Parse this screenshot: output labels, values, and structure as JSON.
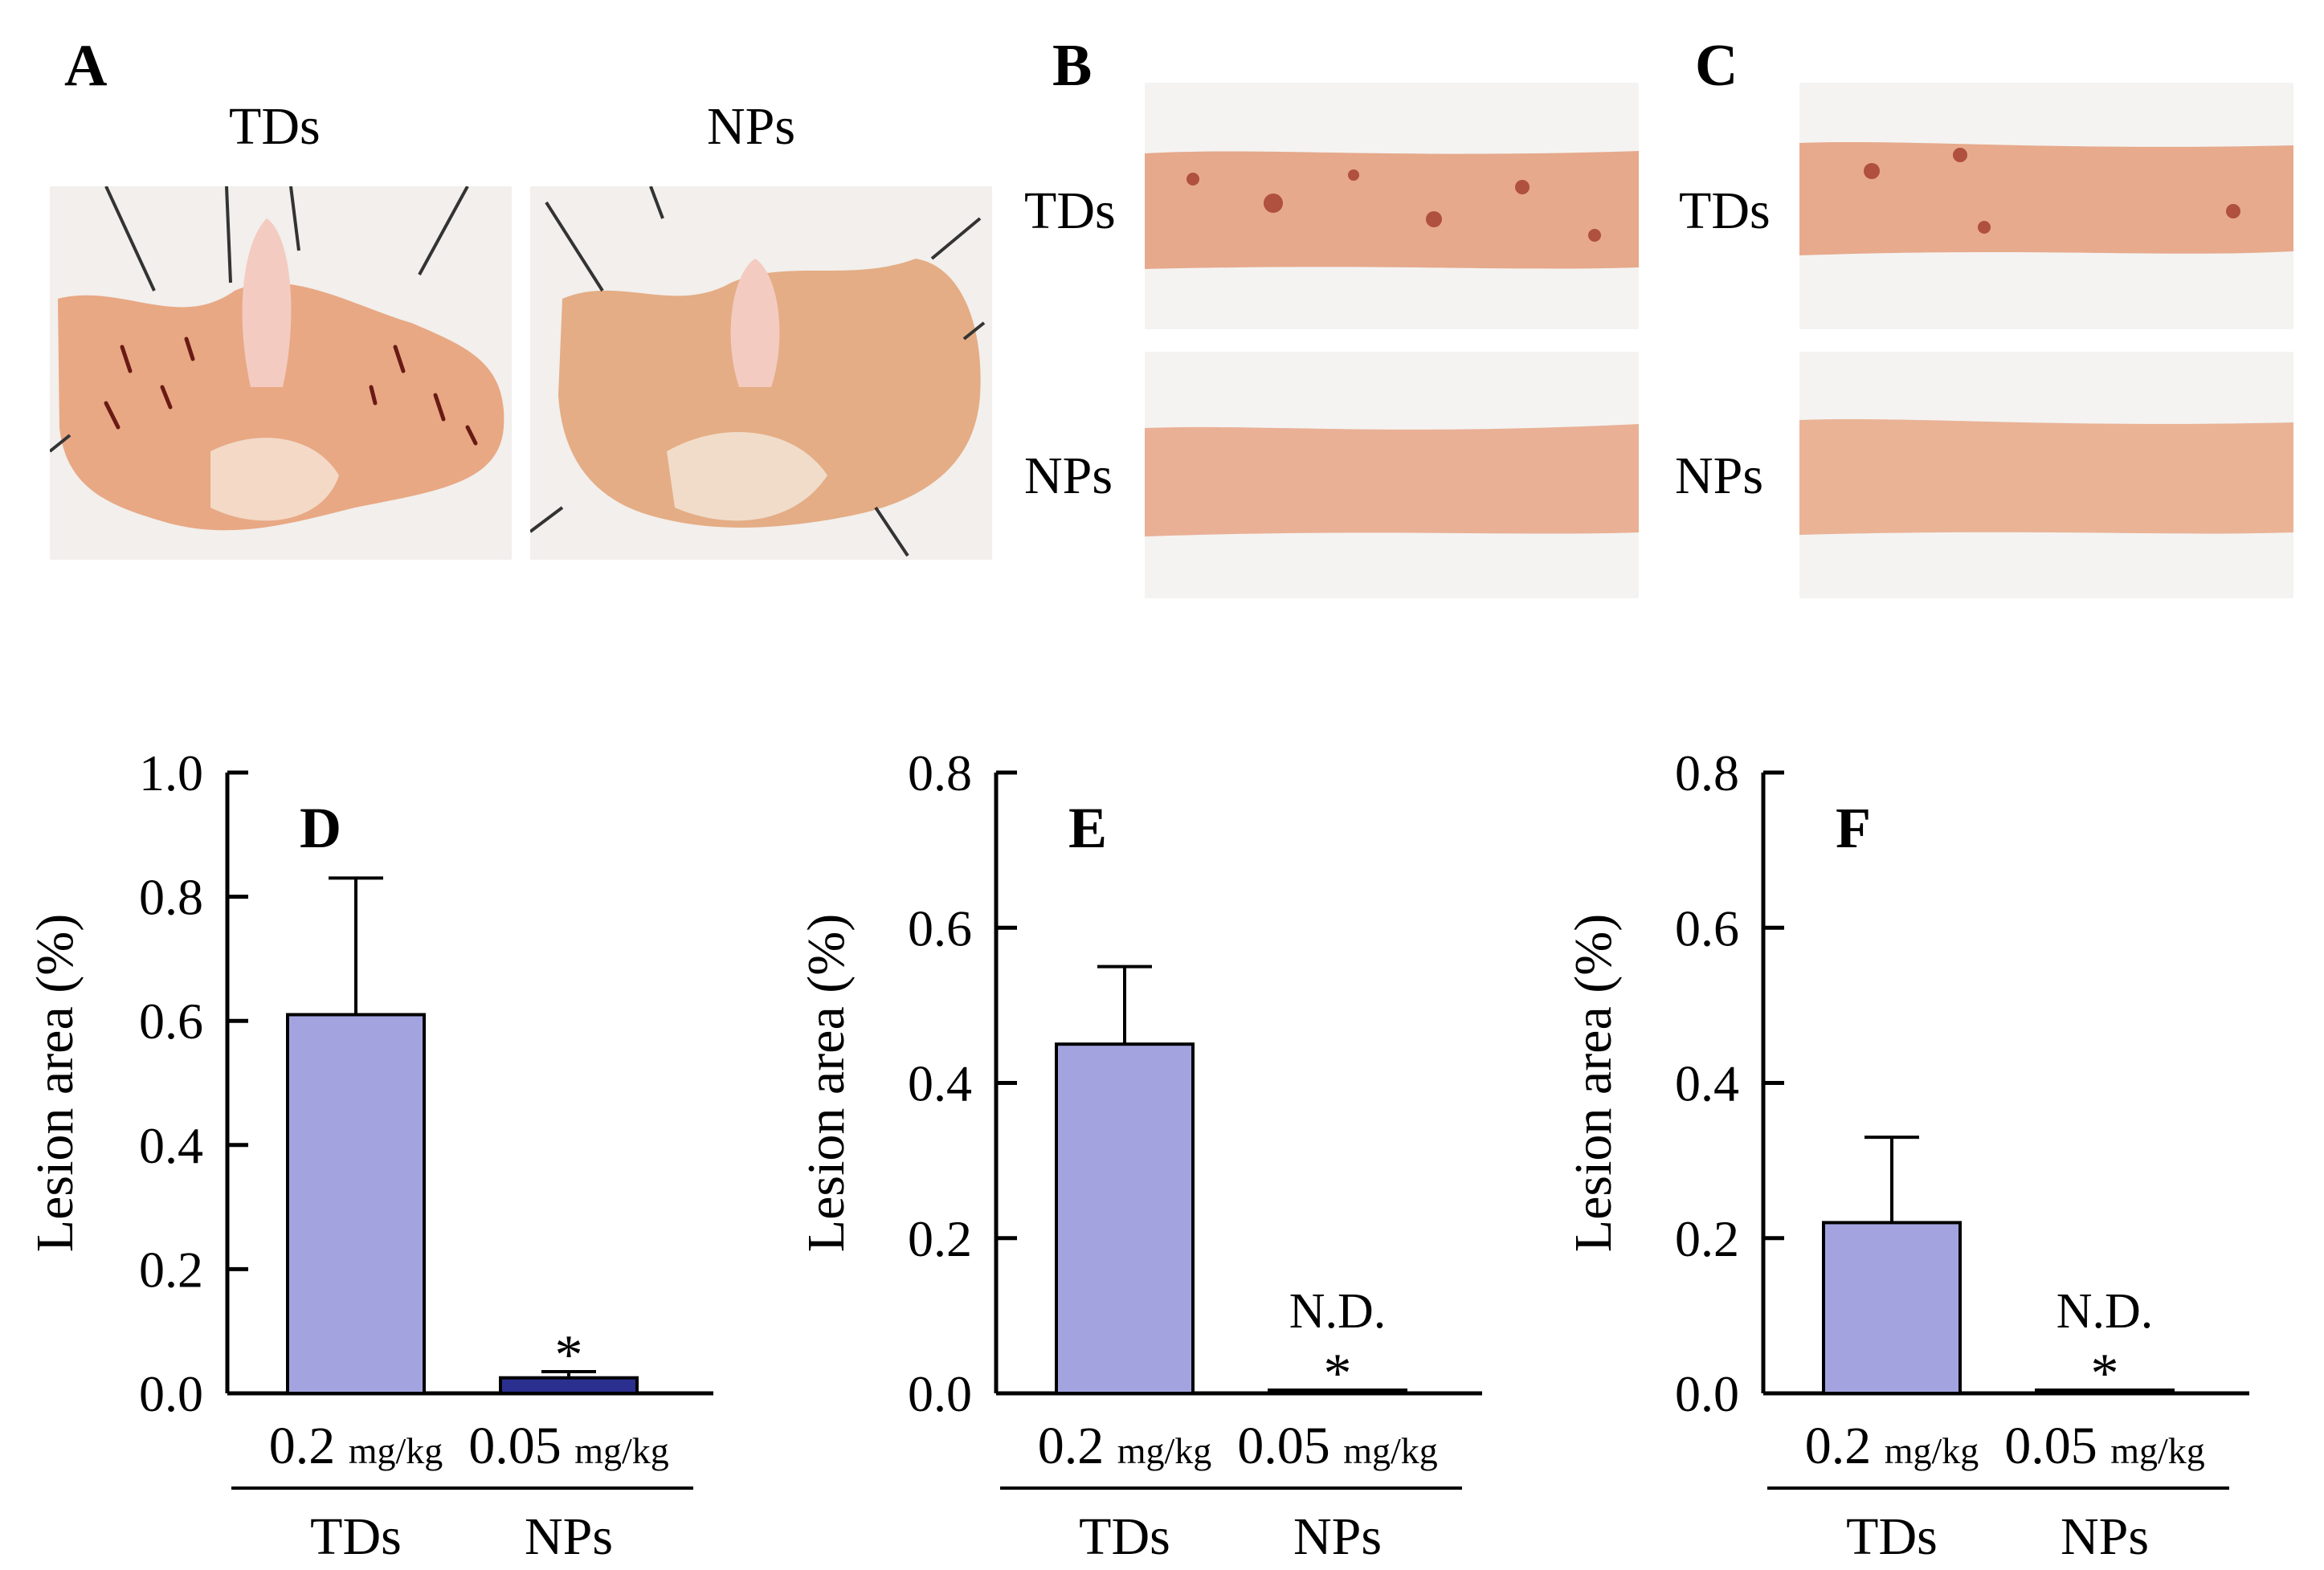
{
  "panels_top": {
    "A": {
      "letter": "A",
      "labels": [
        "TDs",
        "NPs"
      ],
      "description": "stomach photos"
    },
    "B": {
      "letter": "B",
      "labels": [
        "TDs",
        "NPs"
      ],
      "description": "small intestine photos"
    },
    "C": {
      "letter": "C",
      "labels": [
        "TDs",
        "NPs"
      ],
      "description": "colon photos"
    }
  },
  "colors": {
    "tds_bar": "#a3a4df",
    "nps_bar": "#2b2f8f",
    "tissue": "#e6a582",
    "background_photo": "#f3f1ef"
  },
  "chart_data": [
    {
      "type": "bar",
      "panel": "D",
      "ylabel": "Lesion area (%)",
      "ylim": [
        0,
        1.0
      ],
      "yticks": [
        "0.0",
        "0.2",
        "0.4",
        "0.6",
        "0.8",
        "1.0"
      ],
      "ytick_values": [
        0,
        0.2,
        0.4,
        0.6,
        0.8,
        1.0
      ],
      "categories": [
        "TDs",
        "NPs"
      ],
      "doses": [
        {
          "value": "0.2",
          "unit": "mg/kg"
        },
        {
          "value": "0.05",
          "unit": "mg/kg"
        }
      ],
      "values": [
        0.61,
        0.025
      ],
      "errors": [
        0.22,
        0.01
      ],
      "annotations": [
        "",
        "*"
      ]
    },
    {
      "type": "bar",
      "panel": "E",
      "ylabel": "Lesion area (%)",
      "ylim": [
        0,
        0.8
      ],
      "yticks": [
        "0.0",
        "0.2",
        "0.4",
        "0.6",
        "0.8"
      ],
      "ytick_values": [
        0,
        0.2,
        0.4,
        0.6,
        0.8
      ],
      "categories": [
        "TDs",
        "NPs"
      ],
      "doses": [
        {
          "value": "0.2",
          "unit": "mg/kg"
        },
        {
          "value": "0.05",
          "unit": "mg/kg"
        }
      ],
      "values": [
        0.45,
        0.003
      ],
      "errors": [
        0.1,
        0
      ],
      "annotations": [
        "",
        "N.D.\n*"
      ]
    },
    {
      "type": "bar",
      "panel": "F",
      "ylabel": "Lesion area (%)",
      "ylim": [
        0,
        0.8
      ],
      "yticks": [
        "0.0",
        "0.2",
        "0.4",
        "0.6",
        "0.8"
      ],
      "ytick_values": [
        0,
        0.2,
        0.4,
        0.6,
        0.8
      ],
      "categories": [
        "TDs",
        "NPs"
      ],
      "doses": [
        {
          "value": "0.2",
          "unit": "mg/kg"
        },
        {
          "value": "0.05",
          "unit": "mg/kg"
        }
      ],
      "values": [
        0.22,
        0.002
      ],
      "errors": [
        0.11,
        0
      ],
      "annotations": [
        "",
        "N.D.\n*"
      ]
    }
  ]
}
